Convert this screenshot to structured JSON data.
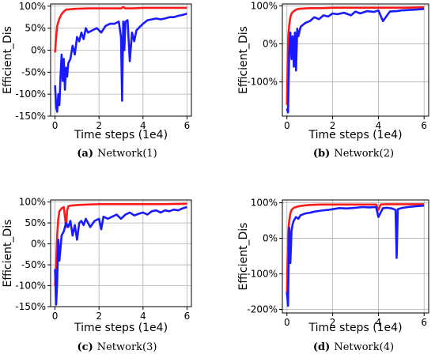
{
  "colors": {
    "red_series": "#ff1a1a",
    "blue_series": "#1a1aff",
    "grid": "#b0b0b0"
  },
  "chart_data": [
    {
      "type": "line",
      "caption_letter": "(a)",
      "caption_text": "Network(1)",
      "xlabel": "Time steps (1e4)",
      "ylabel": "Efficient_Dis",
      "xlim": [
        -0.2,
        6.2
      ],
      "ylim": [
        -150,
        105
      ],
      "xticks": [
        0,
        2,
        4,
        6
      ],
      "xtick_labels": [
        "0",
        "2",
        "4",
        "6"
      ],
      "yticks": [
        100,
        50,
        0,
        -50,
        -100,
        -150
      ],
      "ytick_labels": [
        "100%",
        "50%",
        "0%",
        "-50%",
        "-100%",
        "-150%"
      ],
      "grid": true,
      "series": [
        {
          "color": "#ff1a1a",
          "x": [
            0,
            0.05,
            0.1,
            0.2,
            0.3,
            0.4,
            0.5,
            0.7,
            1.0,
            1.5,
            2.0,
            2.5,
            3.0,
            3.1,
            3.2,
            3.5,
            4.0,
            4.5,
            5.0,
            5.5,
            6.0
          ],
          "y": [
            -5,
            30,
            55,
            72,
            82,
            88,
            92,
            93,
            94,
            95,
            95,
            95,
            95,
            98,
            95,
            95,
            96,
            96,
            96,
            96,
            96
          ]
        },
        {
          "color": "#1a1aff",
          "x": [
            0,
            0.05,
            0.1,
            0.15,
            0.2,
            0.25,
            0.3,
            0.35,
            0.4,
            0.45,
            0.5,
            0.55,
            0.6,
            0.7,
            0.8,
            0.9,
            1.0,
            1.1,
            1.2,
            1.3,
            1.4,
            1.5,
            1.7,
            1.9,
            2.1,
            2.3,
            2.5,
            2.7,
            2.9,
            3.0,
            3.05,
            3.1,
            3.15,
            3.2,
            3.3,
            3.4,
            3.5,
            3.6,
            3.7,
            3.8,
            3.9,
            4.0,
            4.2,
            4.4,
            4.6,
            4.8,
            5.0,
            5.2,
            5.4,
            5.6,
            5.8,
            6.0
          ],
          "y": [
            -80,
            -130,
            -140,
            -100,
            -125,
            -60,
            -10,
            -70,
            -20,
            -90,
            -40,
            -60,
            -30,
            -20,
            10,
            -10,
            30,
            20,
            40,
            25,
            50,
            40,
            45,
            50,
            40,
            55,
            60,
            60,
            65,
            30,
            -115,
            65,
            0,
            65,
            68,
            -25,
            40,
            20,
            45,
            50,
            55,
            60,
            68,
            70,
            72,
            70,
            72,
            75,
            75,
            78,
            80,
            83
          ]
        }
      ]
    },
    {
      "type": "line",
      "caption_letter": "(b)",
      "caption_text": "Network(2)",
      "xlabel": "Time steps (1e4)",
      "ylabel": "Efficient_Dis",
      "xlim": [
        -0.2,
        6.2
      ],
      "ylim": [
        -190,
        105
      ],
      "xticks": [
        0,
        2,
        4,
        6
      ],
      "xtick_labels": [
        "0",
        "2",
        "4",
        "6"
      ],
      "yticks": [
        100,
        0,
        -100
      ],
      "ytick_labels": [
        "100%",
        "0%",
        "-100%"
      ],
      "grid": true,
      "series": [
        {
          "color": "#ff1a1a",
          "x": [
            0,
            0.03,
            0.06,
            0.1,
            0.15,
            0.2,
            0.3,
            0.4,
            0.5,
            0.7,
            1.0,
            1.5,
            2.0,
            3.0,
            4.0,
            5.0,
            6.0
          ],
          "y": [
            -160,
            -60,
            20,
            50,
            70,
            80,
            86,
            90,
            92,
            93,
            94,
            94,
            95,
            95,
            95,
            95,
            96
          ]
        },
        {
          "color": "#1a1aff",
          "x": [
            0,
            0.05,
            0.1,
            0.15,
            0.2,
            0.25,
            0.3,
            0.35,
            0.4,
            0.45,
            0.5,
            0.6,
            0.7,
            0.8,
            1.0,
            1.2,
            1.4,
            1.6,
            1.8,
            2.0,
            2.2,
            2.5,
            2.8,
            3.0,
            3.2,
            3.5,
            3.8,
            4.0,
            4.2,
            4.5,
            4.8,
            5.0,
            5.3,
            5.6,
            6.0
          ],
          "y": [
            -170,
            -180,
            -20,
            30,
            -40,
            20,
            -60,
            30,
            -70,
            40,
            20,
            45,
            50,
            55,
            60,
            70,
            65,
            75,
            72,
            80,
            78,
            82,
            75,
            85,
            80,
            86,
            84,
            88,
            60,
            85,
            86,
            88,
            89,
            90,
            92
          ]
        }
      ]
    },
    {
      "type": "line",
      "caption_letter": "(c)",
      "caption_text": "Network(3)",
      "xlabel": "Time steps (1e4)",
      "ylabel": "Efficient_Dis",
      "xlim": [
        -0.2,
        6.2
      ],
      "ylim": [
        -150,
        105
      ],
      "xticks": [
        0,
        2,
        4,
        6
      ],
      "xtick_labels": [
        "0",
        "2",
        "4",
        "6"
      ],
      "yticks": [
        100,
        50,
        0,
        -50,
        -100,
        -150
      ],
      "ytick_labels": [
        "100%",
        "50%",
        "0%",
        "-50%",
        "-100%",
        "-150%"
      ],
      "grid": true,
      "series": [
        {
          "color": "#ff1a1a",
          "x": [
            0,
            0.05,
            0.1,
            0.15,
            0.2,
            0.3,
            0.4,
            0.5,
            0.55,
            0.6,
            0.7,
            0.8,
            1.0,
            1.5,
            2.0,
            3.0,
            4.0,
            5.0,
            6.0
          ],
          "y": [
            -100,
            -50,
            20,
            60,
            78,
            85,
            88,
            40,
            80,
            90,
            91,
            92,
            93,
            94,
            95,
            95,
            95,
            95,
            96
          ]
        },
        {
          "color": "#1a1aff",
          "x": [
            0,
            0.05,
            0.1,
            0.15,
            0.2,
            0.3,
            0.4,
            0.5,
            0.6,
            0.7,
            0.8,
            0.9,
            1.0,
            1.1,
            1.2,
            1.3,
            1.4,
            1.5,
            1.6,
            1.8,
            2.0,
            2.1,
            2.2,
            2.4,
            2.6,
            2.8,
            3.0,
            3.2,
            3.4,
            3.6,
            3.8,
            4.0,
            4.2,
            4.4,
            4.6,
            4.8,
            5.0,
            5.2,
            5.4,
            5.6,
            5.8,
            6.0
          ],
          "y": [
            -60,
            -145,
            -90,
            10,
            -40,
            20,
            30,
            50,
            40,
            55,
            20,
            45,
            10,
            50,
            55,
            45,
            60,
            50,
            40,
            55,
            60,
            35,
            65,
            60,
            65,
            70,
            60,
            70,
            75,
            68,
            72,
            75,
            70,
            78,
            80,
            75,
            80,
            78,
            82,
            80,
            85,
            88
          ]
        }
      ]
    },
    {
      "type": "line",
      "caption_letter": "(d)",
      "caption_text": "Network(4)",
      "xlabel": "Time steps (1e4)",
      "ylabel": "Efficient_Dis",
      "xlim": [
        -0.2,
        6.2
      ],
      "ylim": [
        -210,
        108
      ],
      "xticks": [
        0,
        2,
        4,
        6
      ],
      "xtick_labels": [
        "0",
        "2",
        "4",
        "6"
      ],
      "yticks": [
        100,
        0,
        -100,
        -200
      ],
      "ytick_labels": [
        "100%",
        "0%",
        "-100%",
        "-200%"
      ],
      "grid": true,
      "series": [
        {
          "color": "#ff1a1a",
          "x": [
            0,
            0.03,
            0.06,
            0.1,
            0.15,
            0.2,
            0.3,
            0.5,
            0.7,
            1.0,
            1.5,
            2.0,
            3.0,
            3.9,
            4.0,
            4.1,
            4.3,
            4.5,
            5.0,
            5.5,
            6.0
          ],
          "y": [
            -160,
            -60,
            20,
            50,
            70,
            80,
            86,
            90,
            92,
            94,
            95,
            95,
            95,
            95,
            80,
            95,
            96,
            96,
            96,
            96,
            96
          ]
        },
        {
          "color": "#1a1aff",
          "x": [
            0,
            0.05,
            0.1,
            0.15,
            0.2,
            0.25,
            0.3,
            0.4,
            0.5,
            0.6,
            0.8,
            1.0,
            1.2,
            1.5,
            1.8,
            2.0,
            2.3,
            2.6,
            3.0,
            3.3,
            3.6,
            3.9,
            4.0,
            4.2,
            4.4,
            4.6,
            4.75,
            4.8,
            4.85,
            5.0,
            5.3,
            5.6,
            6.0
          ],
          "y": [
            -150,
            -190,
            30,
            -70,
            20,
            40,
            50,
            60,
            55,
            65,
            70,
            72,
            75,
            78,
            80,
            82,
            85,
            84,
            86,
            88,
            87,
            88,
            60,
            85,
            86,
            84,
            80,
            -55,
            82,
            85,
            88,
            90,
            92
          ]
        }
      ]
    }
  ]
}
